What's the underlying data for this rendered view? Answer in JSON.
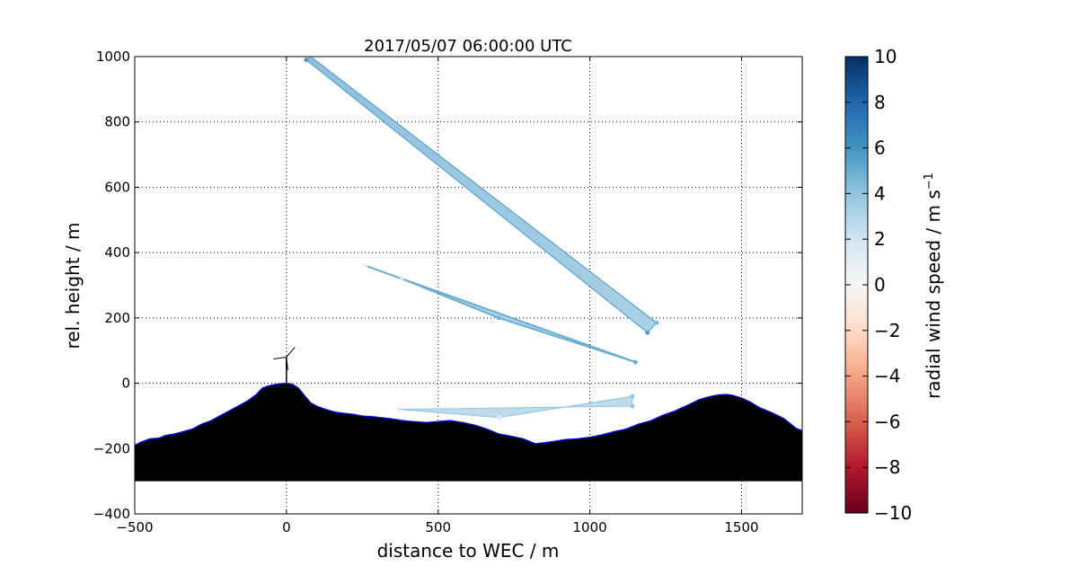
{
  "chart_data": {
    "type": "scatter",
    "title": "2017/05/07 06:00:00 UTC",
    "xlabel": "distance to WEC / m",
    "ylabel": "rel. height / m",
    "xlim": [
      -500,
      1700
    ],
    "ylim": [
      -400,
      1000
    ],
    "xticks": [
      -500,
      0,
      500,
      1000,
      1500
    ],
    "yticks": [
      -400,
      -200,
      0,
      200,
      400,
      600,
      800,
      1000
    ],
    "grid": true,
    "colorbar": {
      "label": "radial wind speed / m s",
      "label_superscript": "−1",
      "range": [
        -10,
        10
      ],
      "ticks": [
        -10,
        -8,
        -6,
        -4,
        -2,
        0,
        2,
        4,
        6,
        8,
        10
      ],
      "colormap": [
        "#67001f",
        "#b2182b",
        "#d6604d",
        "#f4a582",
        "#fddbc7",
        "#f7f7f7",
        "#d1e5f0",
        "#92c5de",
        "#4393c3",
        "#2166ac",
        "#053061"
      ]
    },
    "terrain": {
      "base": -300,
      "x": [
        -500,
        -480,
        -450,
        -420,
        -400,
        -370,
        -340,
        -310,
        -280,
        -250,
        -220,
        -190,
        -160,
        -130,
        -100,
        -80,
        -60,
        -40,
        -20,
        0,
        20,
        40,
        60,
        80,
        100,
        130,
        160,
        190,
        220,
        250,
        280,
        310,
        340,
        370,
        400,
        430,
        460,
        500,
        540,
        580,
        620,
        660,
        700,
        740,
        780,
        820,
        850,
        880,
        920,
        960,
        1000,
        1040,
        1080,
        1120,
        1160,
        1200,
        1240,
        1280,
        1320,
        1360,
        1390,
        1410,
        1430,
        1450,
        1470,
        1500,
        1530,
        1560,
        1600,
        1640,
        1680,
        1700
      ],
      "y": [
        -190,
        -180,
        -170,
        -168,
        -160,
        -155,
        -148,
        -140,
        -125,
        -115,
        -100,
        -85,
        -70,
        -55,
        -35,
        -15,
        -8,
        -4,
        -1,
        0,
        -3,
        -15,
        -38,
        -60,
        -70,
        -80,
        -88,
        -92,
        -95,
        -100,
        -102,
        -105,
        -108,
        -112,
        -116,
        -118,
        -120,
        -117,
        -114,
        -120,
        -128,
        -140,
        -155,
        -162,
        -170,
        -185,
        -182,
        -178,
        -172,
        -170,
        -165,
        -158,
        -148,
        -140,
        -125,
        -115,
        -98,
        -85,
        -68,
        -50,
        -42,
        -38,
        -35,
        -34,
        -37,
        -45,
        -58,
        -75,
        -90,
        -108,
        -138,
        -145
      ],
      "color": "#000000",
      "outline_color": "#0000ff"
    },
    "turbine": {
      "x": 0,
      "hub_height": 80,
      "rotor_radius": 40
    },
    "series": [
      {
        "beam": "upper",
        "points": [
          {
            "x": 80,
            "y": 1000,
            "v": 4.2
          },
          {
            "x": 1220,
            "y": 185,
            "v": 4.5
          },
          {
            "x": 1190,
            "y": 155,
            "v": 5.5
          },
          {
            "x": 65,
            "y": 990,
            "v": 5.8
          }
        ]
      },
      {
        "beam": "middle",
        "points": [
          {
            "x": 260,
            "y": 360,
            "v": 0.8
          },
          {
            "x": 380,
            "y": 320,
            "v": 1.8
          },
          {
            "x": 700,
            "y": 200,
            "v": 4.8
          },
          {
            "x": 1150,
            "y": 65,
            "v": 5.0
          }
        ]
      },
      {
        "beam": "lower",
        "points": [
          {
            "x": 370,
            "y": -80,
            "v": 1.0
          },
          {
            "x": 700,
            "y": -105,
            "v": 1.5
          },
          {
            "x": 1140,
            "y": -40,
            "v": 4.0
          },
          {
            "x": 1140,
            "y": -70,
            "v": 4.0
          }
        ]
      }
    ]
  }
}
